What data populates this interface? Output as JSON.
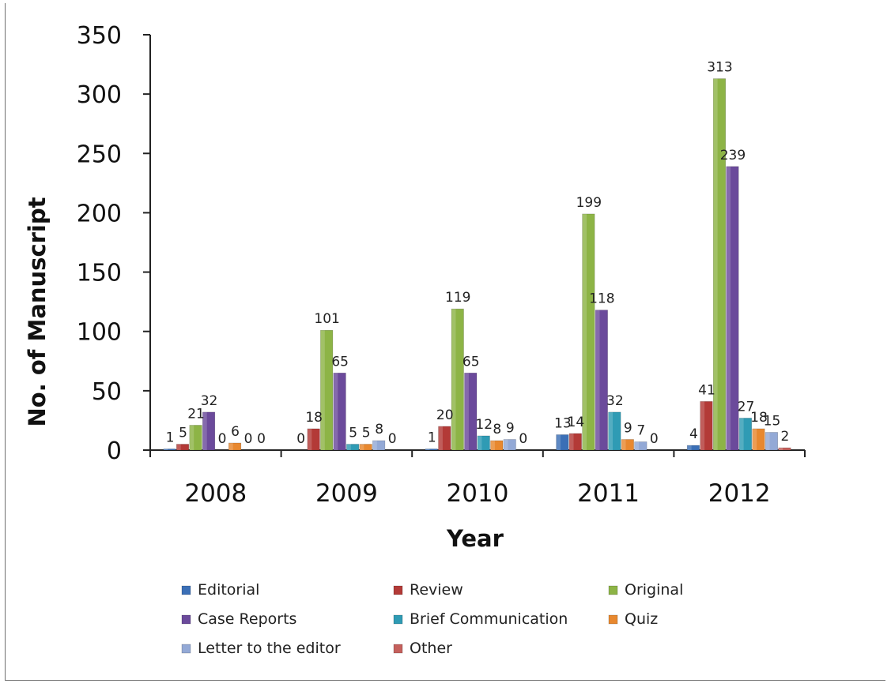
{
  "chart_data": {
    "type": "bar",
    "title": "",
    "xlabel": "Year",
    "ylabel": "No. of Manuscript",
    "ylim": [
      0,
      350
    ],
    "yticks": [
      "0",
      "50",
      "100",
      "150",
      "200",
      "250",
      "300",
      "350"
    ],
    "categories": [
      "2008",
      "2009",
      "2010",
      "2011",
      "2012"
    ],
    "grid": false,
    "legend_position": "bottom",
    "series": [
      {
        "name": "Editorial",
        "color": "#3b6fb6",
        "values": [
          1,
          0,
          1,
          13,
          4
        ],
        "labels": [
          "1",
          "0",
          "1",
          "13",
          "4"
        ]
      },
      {
        "name": "Review",
        "color": "#b33a37",
        "values": [
          5,
          18,
          20,
          14,
          41
        ],
        "labels": [
          "5",
          "18",
          "20",
          "14",
          "41"
        ]
      },
      {
        "name": "Original",
        "color": "#8db446",
        "values": [
          21,
          101,
          119,
          199,
          313
        ],
        "labels": [
          "21",
          "101",
          "119",
          "199",
          "313"
        ]
      },
      {
        "name": "Case Reports",
        "color": "#6b4a9b",
        "values": [
          32,
          65,
          65,
          118,
          239
        ],
        "labels": [
          "32",
          "65",
          "65",
          "118",
          "239"
        ]
      },
      {
        "name": "Brief Communication",
        "color": "#2f9bb4",
        "values": [
          0,
          5,
          12,
          32,
          27
        ],
        "labels": [
          "0",
          "5",
          "12",
          "32",
          "27"
        ]
      },
      {
        "name": "Quiz",
        "color": "#e8882f",
        "values": [
          6,
          5,
          8,
          9,
          18
        ],
        "labels": [
          "6",
          "5",
          "8",
          "9",
          "18"
        ]
      },
      {
        "name": "Letter to the editor",
        "color": "#93a9d6",
        "values": [
          0,
          8,
          9,
          7,
          15
        ],
        "labels": [
          "0",
          "8",
          "9",
          "7",
          "15"
        ]
      },
      {
        "name": "Other",
        "color": "#c5605c",
        "values": [
          0,
          0,
          0,
          0,
          2
        ],
        "labels": [
          "0",
          "0",
          "0",
          "0",
          "2"
        ]
      }
    ]
  }
}
